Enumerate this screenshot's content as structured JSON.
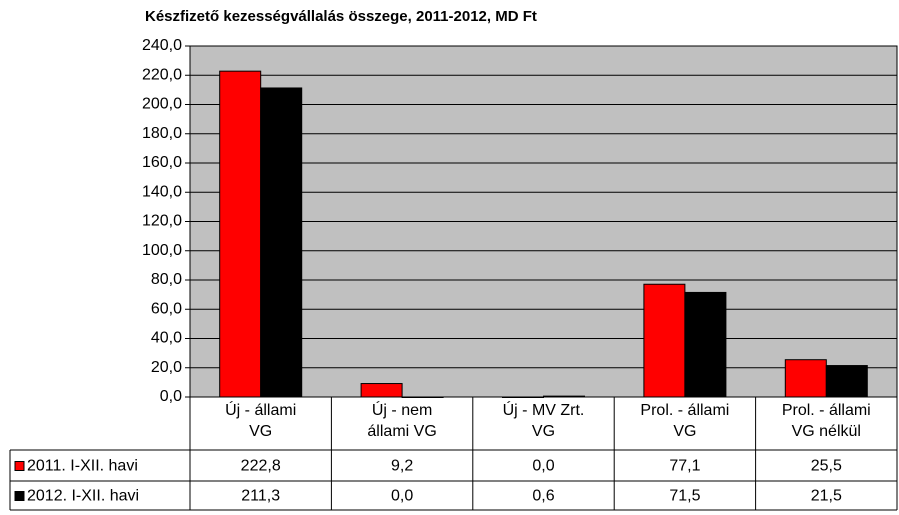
{
  "chart_data": {
    "type": "bar",
    "title": "Készfizető kezességvállalás összege, 2011-2012, MD Ft",
    "categories": [
      "Új - állami\nVG",
      "Új - nem\nállami VG",
      "Új - MV Zrt.\nVG",
      "Prol. - állami\nVG",
      "Prol. - állami\nVG nélkül"
    ],
    "series": [
      {
        "name": "2011. I-XII. havi",
        "color": "#ff0000",
        "values": [
          222.8,
          9.2,
          0.0,
          77.1,
          25.5
        ],
        "value_labels": [
          "222,8",
          "9,2",
          "0,0",
          "77,1",
          "25,5"
        ]
      },
      {
        "name": "2012. I-XII. havi",
        "color": "#000000",
        "values": [
          211.3,
          0.0,
          0.6,
          71.5,
          21.5
        ],
        "value_labels": [
          "211,3",
          "0,0",
          "0,6",
          "71,5",
          "21,5"
        ]
      }
    ],
    "ylim": [
      0,
      240
    ],
    "yticks": [
      {
        "value": 0,
        "label": "0,0"
      },
      {
        "value": 20,
        "label": "20,0"
      },
      {
        "value": 40,
        "label": "40,0"
      },
      {
        "value": 60,
        "label": "60,0"
      },
      {
        "value": 80,
        "label": "80,0"
      },
      {
        "value": 100,
        "label": "100,0"
      },
      {
        "value": 120,
        "label": "120,0"
      },
      {
        "value": 140,
        "label": "140,0"
      },
      {
        "value": 160,
        "label": "160,0"
      },
      {
        "value": 180,
        "label": "180,0"
      },
      {
        "value": 200,
        "label": "200,0"
      },
      {
        "value": 220,
        "label": "220,0"
      },
      {
        "value": 240,
        "label": "240,0"
      }
    ],
    "grid": true,
    "plot_background": "#c0c0c0"
  }
}
